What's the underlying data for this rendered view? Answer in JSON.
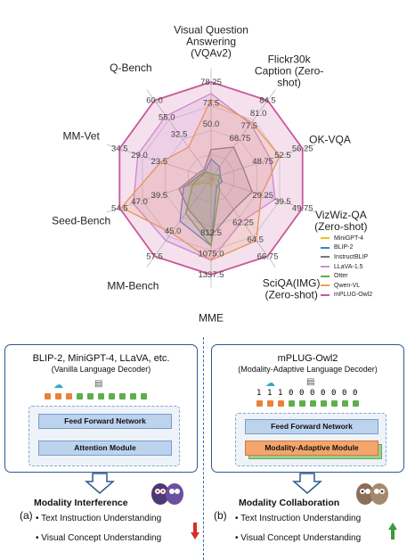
{
  "chart_data": {
    "type": "radar",
    "axes": [
      {
        "label": [
          "Visual Question",
          "Answering",
          "(VQAv2)"
        ],
        "ticks": [
          "50.0",
          "73.5",
          "78.25"
        ]
      },
      {
        "label": [
          "Flickr30k",
          "Caption (Zero-",
          "shot)"
        ],
        "ticks": [
          "68.75",
          "77.5",
          "81.0",
          "84.5"
        ]
      },
      {
        "label": [
          "OK-VQA"
        ],
        "ticks": [
          "48.75",
          "52.5",
          "56.25"
        ]
      },
      {
        "label": [
          "VizWiz-QA",
          "(Zero-shot)"
        ],
        "ticks": [
          "29.25",
          "39.5",
          "49.75"
        ]
      },
      {
        "label": [
          "SciQA(IMG)",
          "(Zero-shot)"
        ],
        "ticks": [
          "62.25",
          "64.5",
          "66.75"
        ]
      },
      {
        "label": [
          "MME"
        ],
        "ticks": [
          "812.5",
          "1075.0",
          "1337.5"
        ]
      },
      {
        "label": [
          "MM-Bench"
        ],
        "ticks": [
          "45.0",
          "57.5"
        ]
      },
      {
        "label": [
          "Seed-Bench"
        ],
        "ticks": [
          "39.5",
          "47.0",
          "54.5"
        ]
      },
      {
        "label": [
          "MM-Vet"
        ],
        "ticks": [
          "23.5",
          "29.0",
          "34.5"
        ]
      },
      {
        "label": [
          "Q-Bench"
        ],
        "ticks": [
          "32.5",
          "55.0",
          "60.0"
        ]
      }
    ],
    "series": [
      {
        "name": "MiniGPT-4",
        "color": "#e8c21a",
        "values": [
          0.05,
          0.02,
          0.02,
          0.05,
          0.02,
          0.08,
          0.05,
          0.25,
          0.12,
          0.08
        ]
      },
      {
        "name": "BLIP-2",
        "color": "#3b7fd4",
        "values": [
          0.2,
          0.15,
          0.1,
          0.12,
          0.1,
          0.7,
          0.55,
          0.3,
          0.12,
          0.1
        ]
      },
      {
        "name": "InstructBLIP",
        "color": "#777777",
        "values": [
          0.3,
          0.4,
          0.35,
          0.45,
          0.4,
          0.6,
          0.4,
          0.35,
          0.15,
          0.12
        ]
      },
      {
        "name": "LLaVA-1.5",
        "color": "#cc8fd8",
        "values": [
          0.88,
          0.7,
          0.65,
          0.7,
          0.55,
          0.85,
          0.8,
          0.85,
          0.8,
          0.8
        ]
      },
      {
        "name": "Otter",
        "color": "#5fae4e",
        "values": [
          0.05,
          0.05,
          0.1,
          0.08,
          0.15,
          0.7,
          0.45,
          0.2,
          0.1,
          0.08
        ]
      },
      {
        "name": "Qwen-VL",
        "color": "#f0a050",
        "values": [
          0.82,
          0.72,
          0.75,
          0.55,
          0.8,
          0.85,
          0.7,
          0.98,
          0.55,
          0.4
        ]
      },
      {
        "name": "mPLUG-Owl2",
        "color": "#c9579a",
        "values": [
          1.0,
          1.0,
          1.0,
          1.0,
          1.0,
          1.0,
          1.0,
          1.0,
          1.0,
          1.0
        ]
      }
    ]
  },
  "panel_a": {
    "title": "BLIP-2, MiniGPT-4, LLaVA, etc.",
    "subtitle": "(Vanilla Language Decoder)",
    "ffn": "Feed Forward Network",
    "attn": "Attention Module",
    "result_title": "Modality Interference",
    "tag": "(a)",
    "items": [
      "Text Instruction Understanding",
      "Visual Concept Understanding"
    ]
  },
  "panel_b": {
    "title": "mPLUG-Owl2",
    "subtitle": "(Modality-Adaptive Language Decoder)",
    "ffn": "Feed Forward Network",
    "mam": "Modality-Adaptive Module",
    "bits": [
      "1",
      "1",
      "1",
      "0",
      "0",
      "0",
      "0",
      "0",
      "0",
      "0"
    ],
    "result_title": "Modality Collaboration",
    "tag": "(b)",
    "items": [
      "Text Instruction Understanding",
      "Visual Concept Understanding"
    ]
  },
  "colors": {
    "border": "#2e5a92",
    "down": "#d92b2b",
    "up": "#3e9a3a"
  }
}
